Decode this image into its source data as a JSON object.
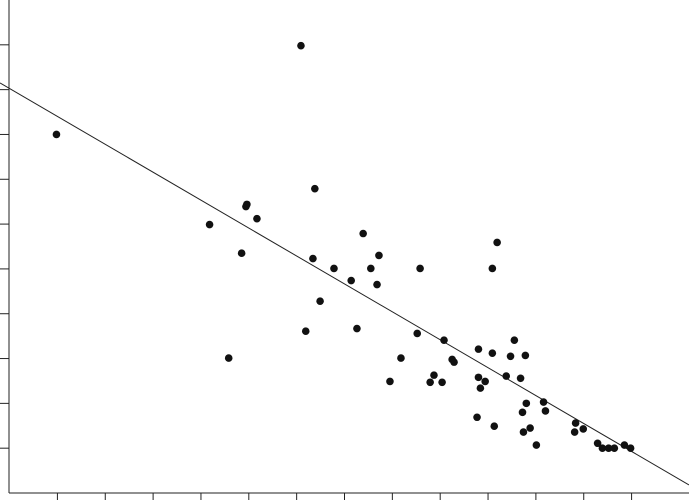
{
  "chart_data": {
    "type": "scatter",
    "color": "#111111",
    "x": [
      -0.02,
      5.09,
      5.38,
      3.18,
      3.94,
      3.96,
      4.17,
      3.85,
      3.58,
      5.34,
      5.49,
      5.19,
      5.78,
      6.14,
      6.39,
      6.55,
      6.72,
      6.68,
      6.26,
      7.58,
      6.95,
      7.18,
      7.52,
      7.79,
      7.87,
      8.04,
      8.08,
      8.25,
      8.29,
      8.8,
      8.8,
      8.84,
      8.94,
      8.77,
      9.09,
      9.19,
      9.09,
      9.13,
      9.38,
      9.47,
      9.55,
      9.68,
      9.78,
      9.72,
      9.8,
      9.74,
      9.88,
      10.01,
      10.16,
      10.2,
      10.81,
      10.83,
      10.99,
      11.29,
      11.39,
      11.52,
      11.64,
      11.85,
      11.98
    ],
    "values": [
      8.0,
      9.98,
      6.79,
      5.99,
      6.39,
      6.44,
      6.12,
      5.35,
      3.01,
      5.23,
      4.28,
      3.61,
      5.01,
      4.74,
      5.79,
      5.01,
      5.3,
      4.65,
      3.67,
      5.01,
      2.49,
      3.01,
      3.56,
      2.47,
      2.63,
      2.47,
      3.41,
      2.98,
      2.92,
      3.21,
      2.58,
      2.34,
      2.49,
      1.69,
      3.12,
      5.59,
      5.01,
      1.49,
      2.61,
      3.05,
      3.41,
      2.56,
      3.07,
      1.8,
      2.0,
      1.36,
      1.45,
      1.07,
      2.03,
      1.83,
      1.36,
      1.56,
      1.43,
      1.11,
      1.0,
      1.0,
      1.0,
      1.07,
      1.0
    ],
    "trendline": {
      "x": [
        -1.2,
        13.2
      ],
      "values": [
        9.15,
        0.18
      ]
    },
    "xlim": [
      -1.2,
      13.2
    ],
    "ylim": [
      0,
      11
    ],
    "xticks": [
      0,
      1,
      2,
      3,
      4,
      5,
      6,
      7,
      8,
      9,
      10,
      11,
      12
    ],
    "yticks": [
      1,
      2,
      3,
      4,
      5,
      6,
      7,
      8,
      9,
      10
    ]
  }
}
